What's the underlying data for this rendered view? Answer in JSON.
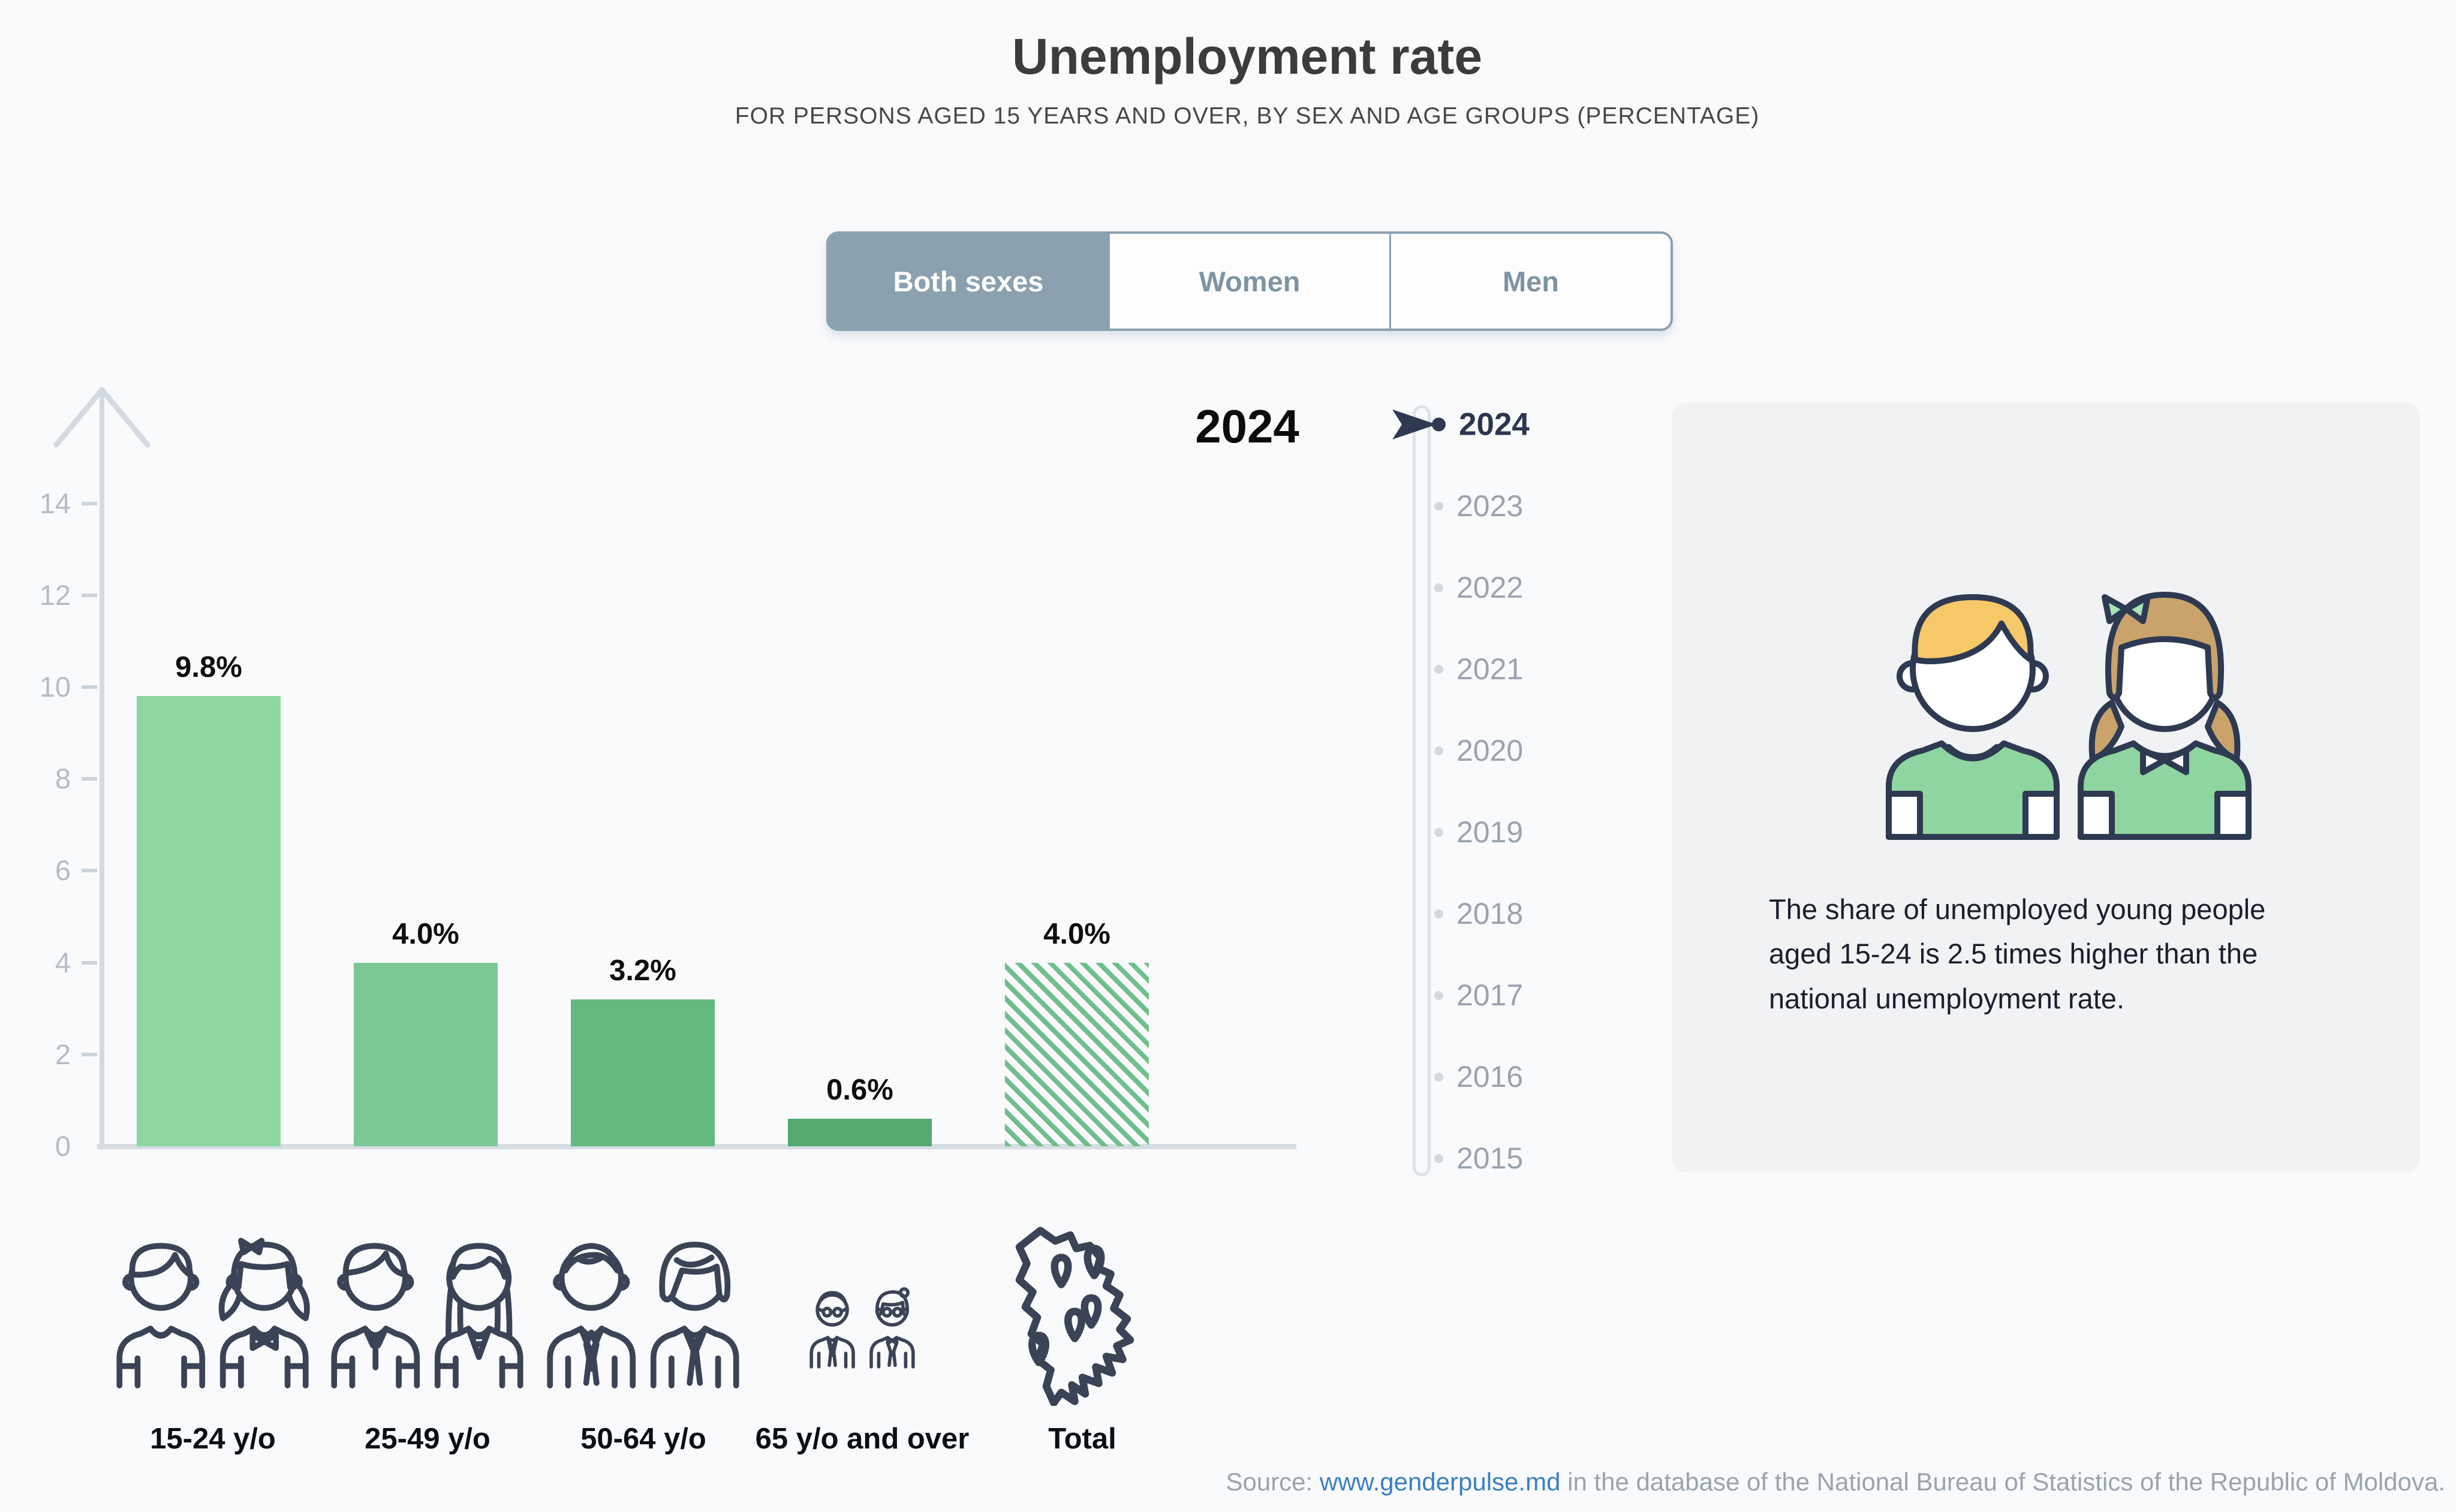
{
  "header": {
    "title": "Unemployment rate",
    "subtitle": "FOR PERSONS AGED 15 YEARS AND OVER, BY SEX AND AGE GROUPS (PERCENTAGE)"
  },
  "tabs": [
    {
      "label": "Both sexes",
      "selected": true
    },
    {
      "label": "Women",
      "selected": false
    },
    {
      "label": "Men",
      "selected": false
    }
  ],
  "year_display": "2024",
  "timeline": {
    "selected_year": "2024",
    "years": [
      "2024",
      "2023",
      "2022",
      "2021",
      "2020",
      "2019",
      "2018",
      "2017",
      "2016",
      "2015"
    ]
  },
  "chart_data": {
    "type": "bar",
    "title": "Unemployment rate",
    "subtitle": "For persons aged 15 years and over, by sex and age groups (percentage)",
    "categories": [
      "15-24 y/o",
      "25-49 y/o",
      "50-64 y/o",
      "65 y/o and over",
      "Total"
    ],
    "values": [
      9.8,
      4.0,
      3.2,
      0.6,
      4.0
    ],
    "value_labels": [
      "9.8%",
      "4.0%",
      "3.2%",
      "0.6%",
      "4.0%"
    ],
    "unit": "%",
    "xlabel": "",
    "ylabel": "",
    "ylim": [
      0,
      15
    ],
    "yticks": [
      0,
      2,
      4,
      6,
      8,
      10,
      12,
      14
    ],
    "grid": false,
    "legend_position": "none",
    "bar_colors": [
      "#8fd6a2",
      "#7cc795",
      "#63ba7e",
      "#55aa70",
      "#6fbf8a"
    ],
    "bar_patterns": [
      "solid",
      "solid",
      "solid",
      "solid",
      "diagonal-hatch"
    ]
  },
  "infobox": {
    "text": "The share of unemployed young people aged 15-24 is 2.5 times higher than the national unemployment rate."
  },
  "source": {
    "prefix": "Source: ",
    "link_text": "www.genderpulse.md",
    "suffix": " in the database of the National Bureau of Statistics of the Republic of Moldova."
  },
  "colors": {
    "tab_accent": "#8ba1b0",
    "axis": "#d3dae1",
    "active_year": "#2e3a52",
    "inactive_year": "#99a4b0",
    "page_bg": "#f9fafb",
    "infobox_bg": "#f0f2f4",
    "link": "#3b7fc2"
  }
}
